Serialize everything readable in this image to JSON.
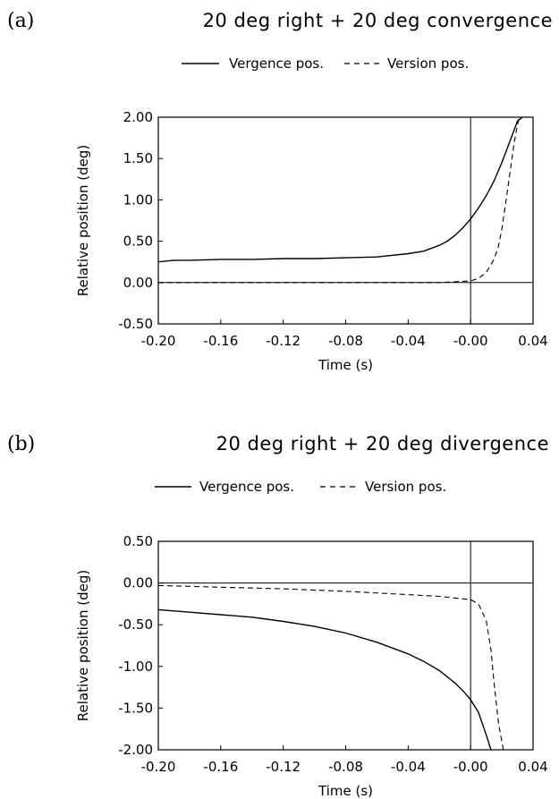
{
  "chart_data": [
    {
      "panel": "(a)",
      "type": "line",
      "title": "20 deg right + 20 deg convergence",
      "xlabel": "Time (s)",
      "ylabel": "Relative position (deg)",
      "xlim": [
        -0.2,
        0.04
      ],
      "ylim": [
        -0.5,
        2.0
      ],
      "xticks": [
        "-0.20",
        "-0.16",
        "-0.12",
        "-0.08",
        "-0.04",
        "-0.00",
        "0.04"
      ],
      "yticks": [
        "-0.50",
        "0.00",
        "0.50",
        "1.00",
        "1.50",
        "2.00"
      ],
      "legend_position": "top",
      "grid": false,
      "series": [
        {
          "name": "Vergence pos.",
          "style": "solid",
          "x": [
            -0.2,
            -0.19,
            -0.18,
            -0.16,
            -0.14,
            -0.12,
            -0.1,
            -0.08,
            -0.06,
            -0.04,
            -0.03,
            -0.02,
            -0.015,
            -0.01,
            -0.005,
            0.0,
            0.005,
            0.01,
            0.015,
            0.02,
            0.025,
            0.03,
            0.033
          ],
          "y": [
            0.25,
            0.27,
            0.27,
            0.28,
            0.28,
            0.29,
            0.29,
            0.3,
            0.31,
            0.35,
            0.38,
            0.45,
            0.5,
            0.57,
            0.66,
            0.77,
            0.9,
            1.05,
            1.23,
            1.45,
            1.7,
            1.95,
            2.0
          ]
        },
        {
          "name": "Version pos.",
          "style": "dashed",
          "x": [
            -0.2,
            -0.1,
            -0.02,
            -0.01,
            0.0,
            0.005,
            0.01,
            0.015,
            0.018,
            0.02,
            0.022,
            0.025,
            0.028,
            0.031
          ],
          "y": [
            0.0,
            0.0,
            0.0,
            0.01,
            0.02,
            0.05,
            0.12,
            0.28,
            0.45,
            0.65,
            0.9,
            1.3,
            1.7,
            2.0
          ]
        }
      ]
    },
    {
      "panel": "(b)",
      "type": "line",
      "title": "20 deg right + 20 deg divergence",
      "xlabel": "Time (s)",
      "ylabel": "Relative position (deg)",
      "xlim": [
        -0.2,
        0.04
      ],
      "ylim": [
        -2.0,
        0.5
      ],
      "xticks": [
        "-0.20",
        "-0.16",
        "-0.12",
        "-0.08",
        "-0.04",
        "-0.00",
        "0.04"
      ],
      "yticks": [
        "-2.00",
        "-1.50",
        "-1.00",
        "-0.50",
        "0.00",
        "0.50"
      ],
      "legend_position": "top",
      "grid": false,
      "series": [
        {
          "name": "Vergence pos.",
          "style": "solid",
          "x": [
            -0.2,
            -0.18,
            -0.16,
            -0.14,
            -0.12,
            -0.1,
            -0.08,
            -0.06,
            -0.04,
            -0.03,
            -0.02,
            -0.01,
            -0.005,
            0.0,
            0.005,
            0.01,
            0.013
          ],
          "y": [
            -0.32,
            -0.35,
            -0.38,
            -0.41,
            -0.46,
            -0.52,
            -0.6,
            -0.71,
            -0.85,
            -0.94,
            -1.05,
            -1.2,
            -1.29,
            -1.4,
            -1.55,
            -1.82,
            -2.0
          ]
        },
        {
          "name": "Version pos.",
          "style": "dashed",
          "x": [
            -0.2,
            -0.16,
            -0.12,
            -0.08,
            -0.04,
            -0.02,
            -0.01,
            0.0,
            0.005,
            0.01,
            0.013,
            0.015,
            0.018,
            0.021
          ],
          "y": [
            -0.03,
            -0.05,
            -0.07,
            -0.1,
            -0.14,
            -0.16,
            -0.18,
            -0.2,
            -0.25,
            -0.45,
            -0.8,
            -1.2,
            -1.7,
            -2.0
          ]
        }
      ]
    }
  ]
}
